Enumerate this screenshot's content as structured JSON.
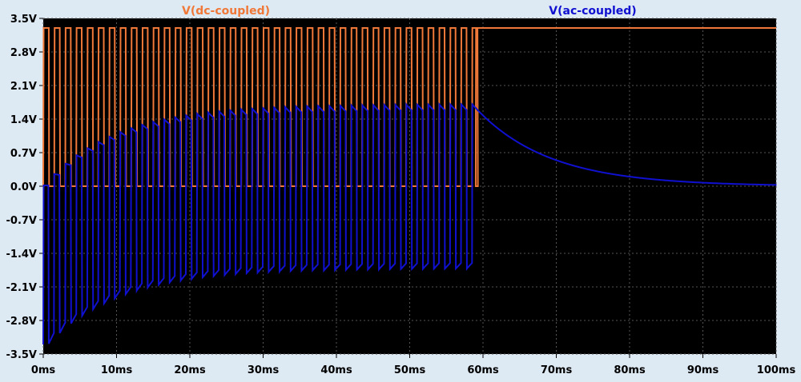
{
  "chart_data": {
    "type": "line",
    "title": "",
    "xlabel": "",
    "ylabel": "",
    "xlim": [
      0,
      100
    ],
    "ylim": [
      -3.5,
      3.5
    ],
    "x_ticks": [
      "0ms",
      "10ms",
      "20ms",
      "30ms",
      "40ms",
      "50ms",
      "60ms",
      "70ms",
      "80ms",
      "90ms",
      "100ms"
    ],
    "x_tick_values": [
      0,
      10,
      20,
      30,
      40,
      50,
      60,
      70,
      80,
      90,
      100
    ],
    "y_ticks": [
      "3.5V",
      "2.8V",
      "2.1V",
      "1.4V",
      "0.7V",
      "0.0V",
      "-0.7V",
      "-1.4V",
      "-2.1V",
      "-2.8V",
      "-3.5V"
    ],
    "y_tick_values": [
      3.5,
      2.8,
      2.1,
      1.4,
      0.7,
      0.0,
      -0.7,
      -1.4,
      -2.1,
      -2.8,
      -3.5
    ],
    "grid": true,
    "background": "#000000",
    "series": [
      {
        "name": "V(dc-coupled)",
        "color": "#f07838",
        "waveform": "square",
        "low": 0.0,
        "high": 3.3,
        "period": 1.5,
        "duty": 0.5,
        "burst_end": 59,
        "after_burst": 3.3
      },
      {
        "name": "V(ac-coupled)",
        "color": "#1010d0",
        "waveform": "ac-coupled square",
        "start_low": -3.3,
        "peak_high_final": 1.7,
        "trough_low_final": -1.65,
        "burst_end": 59,
        "decay_to": 0.0,
        "final_value": 0.03
      }
    ]
  }
}
